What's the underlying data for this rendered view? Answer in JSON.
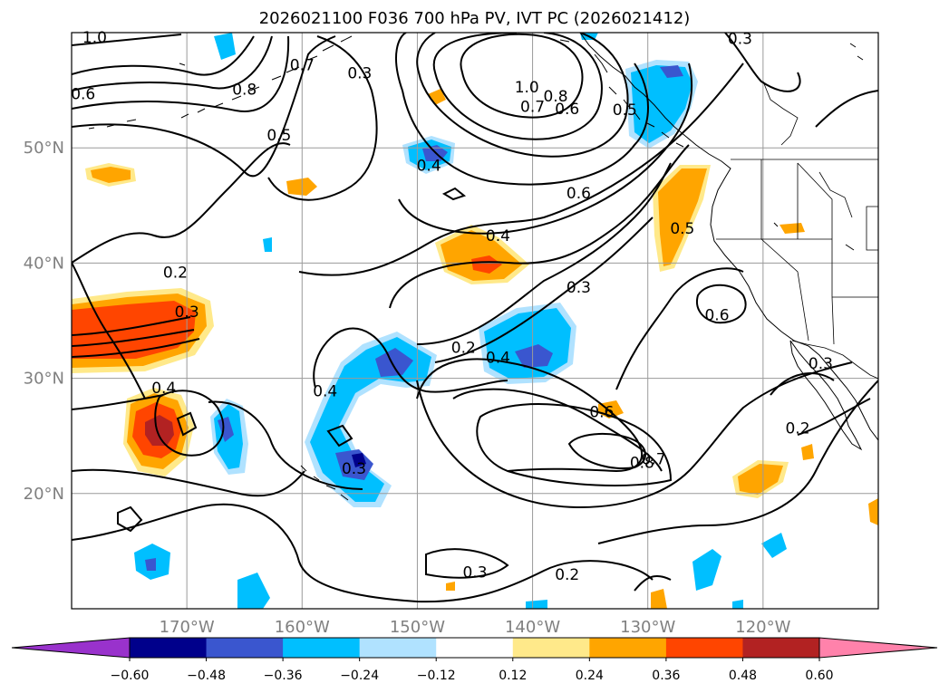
{
  "title": "2026021100 F036 700 hPa PV, IVT PC (2026021412)",
  "map": {
    "lon_range": [
      -180,
      -110
    ],
    "lat_range": [
      10,
      60
    ],
    "lon_ticks": [
      {
        "lon": -170,
        "label": "170°W"
      },
      {
        "lon": -160,
        "label": "160°W"
      },
      {
        "lon": -150,
        "label": "150°W"
      },
      {
        "lon": -140,
        "label": "140°W"
      },
      {
        "lon": -130,
        "label": "130°W"
      },
      {
        "lon": -120,
        "label": "120°W"
      }
    ],
    "lat_ticks": [
      {
        "lat": 20,
        "label": "20°N"
      },
      {
        "lat": 30,
        "label": "30°N"
      },
      {
        "lat": 40,
        "label": "40°N"
      },
      {
        "lat": 50,
        "label": "50°N"
      }
    ],
    "contour_labels": [
      {
        "text": "1.0",
        "lon": -178,
        "lat": 59.6
      },
      {
        "text": "0.6",
        "lon": -179,
        "lat": 54.7
      },
      {
        "text": "0.8",
        "lon": -165,
        "lat": 55.1
      },
      {
        "text": "0.7",
        "lon": -160,
        "lat": 57.2
      },
      {
        "text": "0.3",
        "lon": -155,
        "lat": 56.5
      },
      {
        "text": "0.5",
        "lon": -162,
        "lat": 51.1
      },
      {
        "text": "0.3",
        "lon": -122,
        "lat": 59.5
      },
      {
        "text": "1.0",
        "lon": -140.5,
        "lat": 55.3
      },
      {
        "text": "0.8",
        "lon": -138,
        "lat": 54.5
      },
      {
        "text": "0.7",
        "lon": -140,
        "lat": 53.6
      },
      {
        "text": "0.6",
        "lon": -137,
        "lat": 53.4
      },
      {
        "text": "0.5",
        "lon": -132,
        "lat": 53.3
      },
      {
        "text": "0.4",
        "lon": -149,
        "lat": 48.5
      },
      {
        "text": "0.6",
        "lon": -136,
        "lat": 46.1
      },
      {
        "text": "0.4",
        "lon": -143,
        "lat": 42.4
      },
      {
        "text": "0.5",
        "lon": -127,
        "lat": 43.0
      },
      {
        "text": "0.3",
        "lon": -136,
        "lat": 37.9
      },
      {
        "text": "0.2",
        "lon": -171,
        "lat": 39.2
      },
      {
        "text": "0.3",
        "lon": -170,
        "lat": 35.8
      },
      {
        "text": "0.6",
        "lon": -124,
        "lat": 35.5
      },
      {
        "text": "0.2",
        "lon": -146,
        "lat": 32.7
      },
      {
        "text": "0.4",
        "lon": -143,
        "lat": 31.8
      },
      {
        "text": "0.4",
        "lon": -172,
        "lat": 29.2
      },
      {
        "text": "0.4",
        "lon": -158,
        "lat": 28.9
      },
      {
        "text": "0.6",
        "lon": -134,
        "lat": 27.1
      },
      {
        "text": "0.8",
        "lon": -130.5,
        "lat": 22.7
      },
      {
        "text": "0.7",
        "lon": -129.5,
        "lat": 23.0
      },
      {
        "text": "0.3",
        "lon": -115,
        "lat": 31.3
      },
      {
        "text": "0.2",
        "lon": -117,
        "lat": 25.7
      },
      {
        "text": "0.3",
        "lon": -155.5,
        "lat": 22.2
      },
      {
        "text": "0.3",
        "lon": -145,
        "lat": 13.2
      },
      {
        "text": "0.2",
        "lon": -137,
        "lat": 13.0
      }
    ]
  },
  "colorbar": {
    "levels": [
      -0.6,
      -0.48,
      -0.36,
      -0.24,
      -0.12,
      0.12,
      0.24,
      0.36,
      0.48,
      0.6
    ],
    "tick_labels": [
      "−0.60",
      "−0.48",
      "−0.36",
      "−0.24",
      "−0.12",
      "0.12",
      "0.24",
      "0.36",
      "0.48",
      "0.60"
    ],
    "colors": [
      "#9932cc",
      "#00008b",
      "#3a56cf",
      "#00bfff",
      "#b0e2ff",
      "#ffffff",
      "#ffe98a",
      "#ffa500",
      "#ff4500",
      "#b22222",
      "#ff82ab"
    ]
  }
}
